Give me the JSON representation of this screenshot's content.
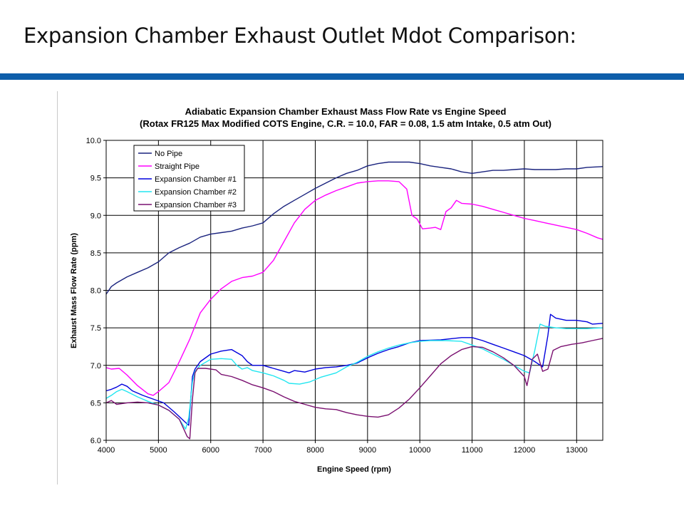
{
  "slide": {
    "title": "Expansion Chamber Exhaust Outlet Mdot Comparison:",
    "accent_color": "#0e5eaa"
  },
  "chart_data": {
    "type": "line",
    "title": "Adiabatic Expansion Chamber Exhaust Mass Flow Rate vs Engine Speed",
    "subtitle": "(Rotax FR125 Max Modified COTS Engine, C.R. = 10.0, FAR = 0.08, 1.5 atm Intake, 0.5 atm Out)",
    "xlabel": "Engine Speed (rpm)",
    "ylabel": "Exhaust Mass Flow Rate (ppm)",
    "xlim": [
      4000,
      13500
    ],
    "ylim": [
      6.0,
      10.0
    ],
    "xticks": [
      4000,
      5000,
      6000,
      7000,
      8000,
      9000,
      10000,
      11000,
      12000,
      13000
    ],
    "yticks": [
      "6.0",
      "6.5",
      "7.0",
      "7.5",
      "8.0",
      "8.5",
      "9.0",
      "9.5",
      "10.0"
    ],
    "grid": true,
    "legend_position": "top-left",
    "series": [
      {
        "name": "No Pipe",
        "color": "#1a237e",
        "points": [
          [
            4000,
            7.95
          ],
          [
            4100,
            8.05
          ],
          [
            4200,
            8.1
          ],
          [
            4400,
            8.18
          ],
          [
            4600,
            8.24
          ],
          [
            4800,
            8.3
          ],
          [
            5000,
            8.38
          ],
          [
            5200,
            8.5
          ],
          [
            5400,
            8.57
          ],
          [
            5600,
            8.63
          ],
          [
            5800,
            8.71
          ],
          [
            6000,
            8.75
          ],
          [
            6200,
            8.77
          ],
          [
            6400,
            8.79
          ],
          [
            6600,
            8.83
          ],
          [
            6800,
            8.86
          ],
          [
            7000,
            8.9
          ],
          [
            7200,
            9.02
          ],
          [
            7400,
            9.12
          ],
          [
            7600,
            9.2
          ],
          [
            7800,
            9.28
          ],
          [
            8000,
            9.36
          ],
          [
            8200,
            9.43
          ],
          [
            8400,
            9.5
          ],
          [
            8600,
            9.56
          ],
          [
            8800,
            9.6
          ],
          [
            9000,
            9.66
          ],
          [
            9200,
            9.69
          ],
          [
            9400,
            9.71
          ],
          [
            9600,
            9.71
          ],
          [
            9800,
            9.71
          ],
          [
            10000,
            9.69
          ],
          [
            10200,
            9.66
          ],
          [
            10400,
            9.64
          ],
          [
            10600,
            9.62
          ],
          [
            10800,
            9.58
          ],
          [
            11000,
            9.56
          ],
          [
            11200,
            9.58
          ],
          [
            11400,
            9.6
          ],
          [
            11600,
            9.6
          ],
          [
            11800,
            9.61
          ],
          [
            12000,
            9.62
          ],
          [
            12200,
            9.61
          ],
          [
            12400,
            9.61
          ],
          [
            12600,
            9.61
          ],
          [
            12800,
            9.62
          ],
          [
            13000,
            9.62
          ],
          [
            13200,
            9.64
          ],
          [
            13500,
            9.65
          ]
        ]
      },
      {
        "name": "Straight Pipe",
        "color": "#ff00ff",
        "points": [
          [
            4000,
            6.97
          ],
          [
            4100,
            6.95
          ],
          [
            4250,
            6.96
          ],
          [
            4400,
            6.87
          ],
          [
            4600,
            6.73
          ],
          [
            4800,
            6.62
          ],
          [
            4900,
            6.6
          ],
          [
            5000,
            6.65
          ],
          [
            5200,
            6.77
          ],
          [
            5400,
            7.05
          ],
          [
            5600,
            7.35
          ],
          [
            5800,
            7.7
          ],
          [
            6000,
            7.88
          ],
          [
            6200,
            8.02
          ],
          [
            6400,
            8.12
          ],
          [
            6600,
            8.17
          ],
          [
            6800,
            8.19
          ],
          [
            7000,
            8.24
          ],
          [
            7200,
            8.4
          ],
          [
            7400,
            8.65
          ],
          [
            7600,
            8.9
          ],
          [
            7800,
            9.08
          ],
          [
            8000,
            9.2
          ],
          [
            8200,
            9.27
          ],
          [
            8400,
            9.33
          ],
          [
            8600,
            9.38
          ],
          [
            8800,
            9.43
          ],
          [
            9000,
            9.45
          ],
          [
            9200,
            9.46
          ],
          [
            9400,
            9.46
          ],
          [
            9600,
            9.45
          ],
          [
            9750,
            9.35
          ],
          [
            9850,
            9.0
          ],
          [
            9950,
            8.95
          ],
          [
            10050,
            8.82
          ],
          [
            10200,
            8.83
          ],
          [
            10300,
            8.84
          ],
          [
            10400,
            8.81
          ],
          [
            10500,
            9.05
          ],
          [
            10600,
            9.1
          ],
          [
            10700,
            9.2
          ],
          [
            10800,
            9.16
          ],
          [
            11000,
            9.15
          ],
          [
            11200,
            9.12
          ],
          [
            11400,
            9.08
          ],
          [
            11600,
            9.04
          ],
          [
            11800,
            9.0
          ],
          [
            12000,
            8.96
          ],
          [
            12200,
            8.93
          ],
          [
            12400,
            8.9
          ],
          [
            12600,
            8.87
          ],
          [
            12800,
            8.84
          ],
          [
            13000,
            8.81
          ],
          [
            13200,
            8.76
          ],
          [
            13400,
            8.7
          ],
          [
            13500,
            8.68
          ]
        ]
      },
      {
        "name": "Expansion Chamber #1",
        "color": "#0000dd",
        "points": [
          [
            4000,
            6.66
          ],
          [
            4100,
            6.68
          ],
          [
            4200,
            6.71
          ],
          [
            4300,
            6.75
          ],
          [
            4400,
            6.72
          ],
          [
            4500,
            6.66
          ],
          [
            4700,
            6.6
          ],
          [
            4900,
            6.55
          ],
          [
            5100,
            6.5
          ],
          [
            5300,
            6.38
          ],
          [
            5500,
            6.25
          ],
          [
            5580,
            6.2
          ],
          [
            5650,
            6.85
          ],
          [
            5700,
            6.95
          ],
          [
            5800,
            7.05
          ],
          [
            6000,
            7.15
          ],
          [
            6200,
            7.19
          ],
          [
            6400,
            7.21
          ],
          [
            6500,
            7.17
          ],
          [
            6600,
            7.13
          ],
          [
            6700,
            7.05
          ],
          [
            6800,
            7.0
          ],
          [
            7000,
            7.0
          ],
          [
            7200,
            6.96
          ],
          [
            7400,
            6.92
          ],
          [
            7500,
            6.9
          ],
          [
            7600,
            6.93
          ],
          [
            7800,
            6.91
          ],
          [
            8000,
            6.95
          ],
          [
            8200,
            6.97
          ],
          [
            8400,
            6.98
          ],
          [
            8600,
            7.0
          ],
          [
            8800,
            7.03
          ],
          [
            9000,
            7.1
          ],
          [
            9200,
            7.16
          ],
          [
            9400,
            7.21
          ],
          [
            9600,
            7.25
          ],
          [
            9800,
            7.3
          ],
          [
            10000,
            7.33
          ],
          [
            10400,
            7.34
          ],
          [
            10800,
            7.37
          ],
          [
            11000,
            7.37
          ],
          [
            11200,
            7.33
          ],
          [
            11400,
            7.28
          ],
          [
            11600,
            7.23
          ],
          [
            11800,
            7.18
          ],
          [
            12000,
            7.13
          ],
          [
            12200,
            7.05
          ],
          [
            12350,
            6.98
          ],
          [
            12450,
            7.4
          ],
          [
            12500,
            7.68
          ],
          [
            12600,
            7.63
          ],
          [
            12800,
            7.6
          ],
          [
            13000,
            7.6
          ],
          [
            13200,
            7.58
          ],
          [
            13300,
            7.55
          ],
          [
            13500,
            7.56
          ]
        ]
      },
      {
        "name": "Expansion Chamber #2",
        "color": "#22e6f0",
        "points": [
          [
            4000,
            6.56
          ],
          [
            4100,
            6.6
          ],
          [
            4200,
            6.65
          ],
          [
            4300,
            6.68
          ],
          [
            4400,
            6.65
          ],
          [
            4600,
            6.58
          ],
          [
            4800,
            6.52
          ],
          [
            5000,
            6.47
          ],
          [
            5200,
            6.4
          ],
          [
            5400,
            6.28
          ],
          [
            5520,
            6.15
          ],
          [
            5580,
            6.3
          ],
          [
            5650,
            6.78
          ],
          [
            5700,
            6.92
          ],
          [
            5800,
            7.0
          ],
          [
            6000,
            7.08
          ],
          [
            6200,
            7.09
          ],
          [
            6400,
            7.08
          ],
          [
            6500,
            7.0
          ],
          [
            6600,
            6.95
          ],
          [
            6700,
            6.97
          ],
          [
            6800,
            6.93
          ],
          [
            7000,
            6.9
          ],
          [
            7200,
            6.86
          ],
          [
            7400,
            6.8
          ],
          [
            7500,
            6.76
          ],
          [
            7700,
            6.75
          ],
          [
            7900,
            6.78
          ],
          [
            8100,
            6.84
          ],
          [
            8400,
            6.9
          ],
          [
            8600,
            6.98
          ],
          [
            8800,
            7.04
          ],
          [
            9000,
            7.12
          ],
          [
            9200,
            7.18
          ],
          [
            9400,
            7.23
          ],
          [
            9600,
            7.27
          ],
          [
            9800,
            7.3
          ],
          [
            10000,
            7.32
          ],
          [
            10200,
            7.33
          ],
          [
            10500,
            7.33
          ],
          [
            10800,
            7.32
          ],
          [
            11000,
            7.27
          ],
          [
            11200,
            7.22
          ],
          [
            11400,
            7.15
          ],
          [
            11600,
            7.08
          ],
          [
            11800,
            7.0
          ],
          [
            12000,
            6.92
          ],
          [
            12100,
            6.9
          ],
          [
            12200,
            7.2
          ],
          [
            12300,
            7.55
          ],
          [
            12400,
            7.52
          ],
          [
            12600,
            7.5
          ],
          [
            12800,
            7.49
          ],
          [
            13000,
            7.49
          ],
          [
            13200,
            7.49
          ],
          [
            13500,
            7.5
          ]
        ]
      },
      {
        "name": "Expansion Chamber #3",
        "color": "#7a1070",
        "points": [
          [
            4000,
            6.5
          ],
          [
            4100,
            6.53
          ],
          [
            4200,
            6.48
          ],
          [
            4400,
            6.5
          ],
          [
            4600,
            6.51
          ],
          [
            4800,
            6.5
          ],
          [
            5000,
            6.47
          ],
          [
            5200,
            6.4
          ],
          [
            5400,
            6.28
          ],
          [
            5550,
            6.05
          ],
          [
            5600,
            6.02
          ],
          [
            5650,
            6.55
          ],
          [
            5700,
            6.9
          ],
          [
            5750,
            6.96
          ],
          [
            5900,
            6.96
          ],
          [
            6100,
            6.94
          ],
          [
            6200,
            6.88
          ],
          [
            6400,
            6.85
          ],
          [
            6600,
            6.8
          ],
          [
            6800,
            6.74
          ],
          [
            7000,
            6.7
          ],
          [
            7200,
            6.65
          ],
          [
            7400,
            6.58
          ],
          [
            7600,
            6.52
          ],
          [
            7800,
            6.48
          ],
          [
            8000,
            6.44
          ],
          [
            8200,
            6.42
          ],
          [
            8400,
            6.41
          ],
          [
            8600,
            6.37
          ],
          [
            8800,
            6.34
          ],
          [
            9000,
            6.32
          ],
          [
            9200,
            6.31
          ],
          [
            9400,
            6.34
          ],
          [
            9600,
            6.43
          ],
          [
            9800,
            6.55
          ],
          [
            10000,
            6.7
          ],
          [
            10200,
            6.86
          ],
          [
            10400,
            7.02
          ],
          [
            10600,
            7.13
          ],
          [
            10800,
            7.21
          ],
          [
            11000,
            7.25
          ],
          [
            11200,
            7.24
          ],
          [
            11400,
            7.18
          ],
          [
            11600,
            7.1
          ],
          [
            11800,
            7.0
          ],
          [
            12000,
            6.85
          ],
          [
            12050,
            6.73
          ],
          [
            12150,
            7.08
          ],
          [
            12250,
            7.15
          ],
          [
            12350,
            6.92
          ],
          [
            12450,
            6.95
          ],
          [
            12550,
            7.2
          ],
          [
            12700,
            7.25
          ],
          [
            12900,
            7.28
          ],
          [
            13100,
            7.3
          ],
          [
            13300,
            7.33
          ],
          [
            13500,
            7.36
          ]
        ]
      }
    ]
  }
}
